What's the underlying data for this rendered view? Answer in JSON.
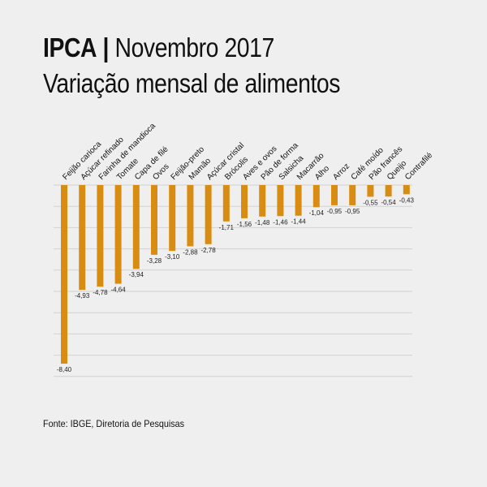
{
  "header": {
    "title_bold": "IPCA",
    "separator": "|",
    "title_rest": "Novembro 2017",
    "subtitle": "Variação mensal de alimentos"
  },
  "footer": {
    "source": "Fonte: IBGE, Diretoria de Pesquisas"
  },
  "colors": {
    "bar": "#d98c12",
    "grid": "#d2d2d2",
    "background": "#efefef"
  },
  "chart_data": {
    "type": "bar",
    "title": "Variação mensal de alimentos",
    "xlabel": "",
    "ylabel": "",
    "ylim": [
      -9,
      0
    ],
    "grid": true,
    "categories": [
      "Feijão carioca",
      "Açúcar refinado",
      "Farinha de mandioca",
      "Tomate",
      "Capa de filé",
      "Ovos",
      "Feijão-preto",
      "Mamão",
      "Açúcar cristal",
      "Brócolis",
      "Aves e ovos",
      "Pão de forma",
      "Salsicha",
      "Macarrão",
      "Alho",
      "Arroz",
      "Café moído",
      "Pão francês",
      "Queijo",
      "Contrafilé"
    ],
    "values": [
      -8.4,
      -4.93,
      -4.78,
      -4.64,
      -3.94,
      -3.28,
      -3.1,
      -2.88,
      -2.78,
      -1.71,
      -1.56,
      -1.48,
      -1.46,
      -1.44,
      -1.04,
      -0.95,
      -0.95,
      -0.55,
      -0.54,
      -0.43
    ],
    "value_labels": [
      "-8,40",
      "-4,93",
      "-4,78",
      "-4,64",
      "-3,94",
      "-3,28",
      "-3,10",
      "-2,88",
      "-2,78",
      "-1,71",
      "-1,56",
      "-1,48",
      "-1,46",
      "-1,44",
      "-1,04",
      "-0,95",
      "-0,95",
      "-0,55",
      "-0,54",
      "-0,43"
    ]
  }
}
